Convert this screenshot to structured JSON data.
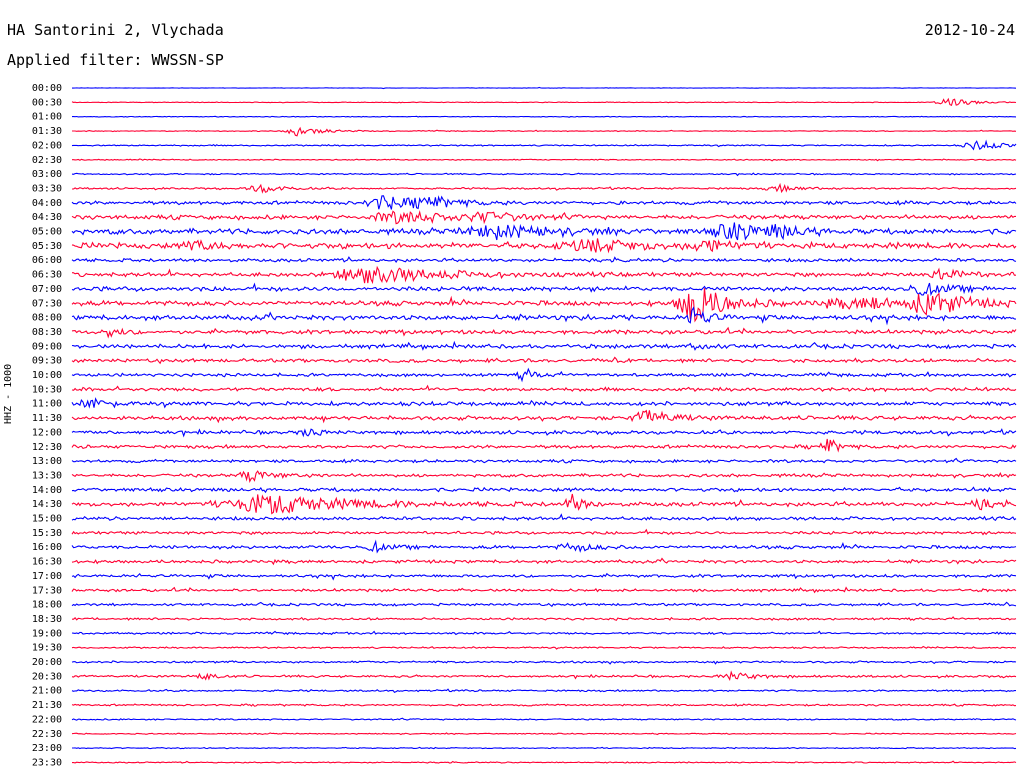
{
  "header": {
    "station": "HA Santorini 2, Vlychada",
    "date": "2012-10-24",
    "filter": "Applied filter: WWSSN-SP",
    "channel": "HHZ - 1000"
  },
  "colors": {
    "blue_trace": "#0000ff",
    "red_trace": "#ff0033"
  },
  "chart_data": {
    "type": "line",
    "chart_kind": "helicorder seismogram",
    "row_labels": [
      "00:00",
      "00:30",
      "01:00",
      "01:30",
      "02:00",
      "02:30",
      "03:00",
      "03:30",
      "04:00",
      "04:30",
      "05:00",
      "05:30",
      "06:00",
      "06:30",
      "07:00",
      "07:30",
      "08:00",
      "08:30",
      "09:00",
      "09:30",
      "10:00",
      "10:30",
      "11:00",
      "11:30",
      "12:00",
      "12:30",
      "13:00",
      "13:30",
      "14:00",
      "14:30",
      "15:00",
      "15:30",
      "16:00",
      "16:30",
      "17:00",
      "17:30",
      "18:00",
      "18:30",
      "19:00",
      "19:30",
      "20:00",
      "20:30",
      "21:00",
      "21:30",
      "22:00",
      "22:30",
      "23:00",
      "23:30"
    ],
    "row_colors": "alternating blue / red",
    "noise_level": [
      0.2,
      0.3,
      0.3,
      0.4,
      0.6,
      0.5,
      0.6,
      0.8,
      1.6,
      1.9,
      2.4,
      2.6,
      1.5,
      1.8,
      2.0,
      2.2,
      2.2,
      1.8,
      1.8,
      1.6,
      1.4,
      1.6,
      1.8,
      1.8,
      1.6,
      1.5,
      1.3,
      1.4,
      1.6,
      1.9,
      1.5,
      1.3,
      1.5,
      1.4,
      1.3,
      1.2,
      1.1,
      1.0,
      0.9,
      0.7,
      0.9,
      1.0,
      0.8,
      0.8,
      0.6,
      0.5,
      0.5,
      0.5
    ],
    "events": [
      {
        "row": 1,
        "at": 0.93,
        "amp": 4,
        "dur": 0.02
      },
      {
        "row": 3,
        "at": 0.24,
        "amp": 5,
        "dur": 0.02
      },
      {
        "row": 4,
        "at": 0.96,
        "amp": 5,
        "dur": 0.02
      },
      {
        "row": 7,
        "at": 0.2,
        "amp": 4,
        "dur": 0.02
      },
      {
        "row": 7,
        "at": 0.75,
        "amp": 3,
        "dur": 0.02
      },
      {
        "row": 8,
        "at": 0.33,
        "amp": 7,
        "dur": 0.025
      },
      {
        "row": 8,
        "at": 0.38,
        "amp": 5,
        "dur": 0.025
      },
      {
        "row": 9,
        "at": 0.35,
        "amp": 6,
        "dur": 0.04
      },
      {
        "row": 9,
        "at": 0.44,
        "amp": 4,
        "dur": 0.03
      },
      {
        "row": 10,
        "at": 0.45,
        "amp": 6,
        "dur": 0.05
      },
      {
        "row": 10,
        "at": 0.7,
        "amp": 8,
        "dur": 0.03
      },
      {
        "row": 10,
        "at": 0.75,
        "amp": 6,
        "dur": 0.015
      },
      {
        "row": 11,
        "at": 0.13,
        "amp": 5,
        "dur": 0.015
      },
      {
        "row": 11,
        "at": 0.55,
        "amp": 5,
        "dur": 0.05
      },
      {
        "row": 11,
        "at": 0.67,
        "amp": 6,
        "dur": 0.02
      },
      {
        "row": 13,
        "at": 0.32,
        "amp": 8,
        "dur": 0.06
      },
      {
        "row": 13,
        "at": 0.92,
        "amp": 6,
        "dur": 0.02
      },
      {
        "row": 14,
        "at": 0.9,
        "amp": 6,
        "dur": 0.02
      },
      {
        "row": 15,
        "at": 0.66,
        "amp": 20,
        "dur": 0.025
      },
      {
        "row": 15,
        "at": 0.91,
        "amp": 12,
        "dur": 0.025
      },
      {
        "row": 15,
        "at": 0.84,
        "amp": 5,
        "dur": 0.06
      },
      {
        "row": 16,
        "at": 0.66,
        "amp": 12,
        "dur": 0.01
      },
      {
        "row": 17,
        "at": 0.04,
        "amp": 5,
        "dur": 0.01
      },
      {
        "row": 18,
        "at": 0.66,
        "amp": 5,
        "dur": 0.01
      },
      {
        "row": 20,
        "at": 0.48,
        "amp": 6,
        "dur": 0.01
      },
      {
        "row": 22,
        "at": 0.02,
        "amp": 5,
        "dur": 0.015
      },
      {
        "row": 23,
        "at": 0.61,
        "amp": 8,
        "dur": 0.02
      },
      {
        "row": 24,
        "at": 0.25,
        "amp": 5,
        "dur": 0.01
      },
      {
        "row": 25,
        "at": 0.8,
        "amp": 8,
        "dur": 0.01
      },
      {
        "row": 27,
        "at": 0.19,
        "amp": 5,
        "dur": 0.02
      },
      {
        "row": 29,
        "at": 0.21,
        "amp": 9,
        "dur": 0.07
      },
      {
        "row": 29,
        "at": 0.53,
        "amp": 9,
        "dur": 0.01
      },
      {
        "row": 29,
        "at": 0.96,
        "amp": 5,
        "dur": 0.01
      },
      {
        "row": 32,
        "at": 0.32,
        "amp": 5,
        "dur": 0.01
      },
      {
        "row": 32,
        "at": 0.53,
        "amp": 4,
        "dur": 0.02
      },
      {
        "row": 41,
        "at": 0.14,
        "amp": 4,
        "dur": 0.01
      },
      {
        "row": 41,
        "at": 0.7,
        "amp": 4,
        "dur": 0.02
      }
    ]
  }
}
